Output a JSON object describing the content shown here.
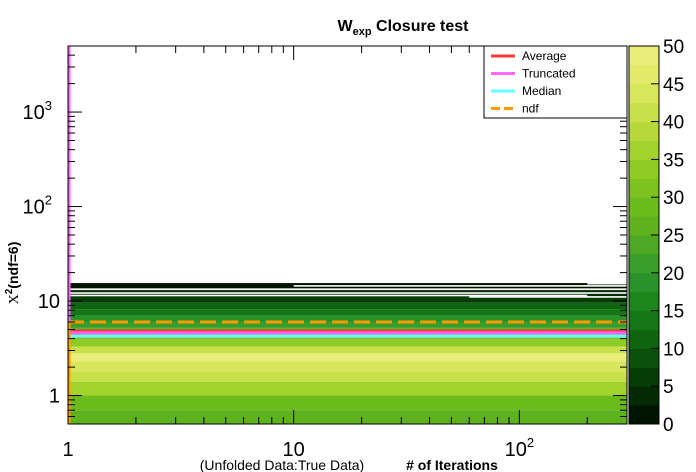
{
  "chart_data": {
    "type": "heatmap",
    "title": "W",
    "title_sub": "exp",
    "title_rest": " Closure test",
    "xlabel_left": "(Unfolded Data:True Data)",
    "xlabel_right": "# of Iterations",
    "ylabel": "X",
    "ylabel_sup": "2",
    "ylabel_rest": "(ndf=6)",
    "x_log": true,
    "y_log": true,
    "xlim": [
      1,
      300
    ],
    "ylim": [
      0.5,
      5000
    ],
    "x_ticks": [
      {
        "value": 1,
        "label": "1"
      },
      {
        "value": 10,
        "label": "10"
      },
      {
        "value": 100,
        "label": "10",
        "exp": "2"
      }
    ],
    "y_ticks": [
      {
        "value": 1,
        "label": "1"
      },
      {
        "value": 10,
        "label": "10"
      },
      {
        "value": 100,
        "label": "10",
        "exp": "2"
      },
      {
        "value": 1000,
        "label": "10",
        "exp": "3"
      }
    ],
    "colorbar": {
      "min": 0,
      "max": 50,
      "ticks": [
        0,
        5,
        10,
        15,
        20,
        25,
        30,
        35,
        40,
        45,
        50
      ],
      "colors": [
        "#001400",
        "#032a03",
        "#063c06",
        "#0b510b",
        "#0f640f",
        "#157615",
        "#1c861c",
        "#2a922a",
        "#3a9d2a",
        "#4ea823",
        "#5db21e",
        "#6cbb1c",
        "#7dc21f",
        "#8fcb25",
        "#a2d22e",
        "#b6d83b",
        "#c8e04a",
        "#d7e65a",
        "#e2ea6a",
        "#e9ed7a"
      ]
    },
    "heatmap_rows": [
      {
        "y": [
          0.5,
          0.7
        ],
        "value": 27
      },
      {
        "y": [
          0.7,
          1.0
        ],
        "value": 29
      },
      {
        "y": [
          1.0,
          1.4
        ],
        "value": 36
      },
      {
        "y": [
          1.4,
          1.8
        ],
        "value": 40
      },
      {
        "y": [
          1.8,
          2.3
        ],
        "value": 44
      },
      {
        "y": [
          2.3,
          2.8
        ],
        "value": 48
      },
      {
        "y": [
          2.8,
          3.3
        ],
        "value": 40
      },
      {
        "y": [
          3.3,
          3.9
        ],
        "value": 34
      },
      {
        "y": [
          3.9,
          4.5
        ],
        "value": 30
      },
      {
        "y": [
          4.5,
          5.2
        ],
        "value": 26
      },
      {
        "y": [
          5.2,
          6.0
        ],
        "value": 22
      },
      {
        "y": [
          6.0,
          7.0
        ],
        "value": 18
      },
      {
        "y": [
          7.0,
          8.2
        ],
        "value": 14
      },
      {
        "y": [
          8.2,
          9.6
        ],
        "value": 10
      },
      {
        "y": [
          9.6,
          11.2
        ],
        "value": 7
      },
      {
        "y": [
          11.2,
          13.0
        ],
        "value": 4
      },
      {
        "y": [
          13.0,
          15.5
        ],
        "value": 1
      }
    ],
    "series": [
      {
        "name": "Average",
        "color": "#ff3333",
        "style": "solid",
        "x": [
          1,
          300
        ],
        "y": [
          4.8,
          4.8
        ]
      },
      {
        "name": "Truncated",
        "color": "#ff66ff",
        "style": "solid",
        "x": [
          1,
          300
        ],
        "y": [
          4.6,
          4.6
        ]
      },
      {
        "name": "Median",
        "color": "#66ffff",
        "style": "solid",
        "x": [
          1,
          300
        ],
        "y": [
          4.25,
          4.25
        ]
      },
      {
        "name": "ndf",
        "color": "#ff9900",
        "style": "dashed",
        "x": [
          1,
          300
        ],
        "y": [
          6,
          6
        ]
      }
    ],
    "legend_position": "top-right",
    "grid": false
  }
}
